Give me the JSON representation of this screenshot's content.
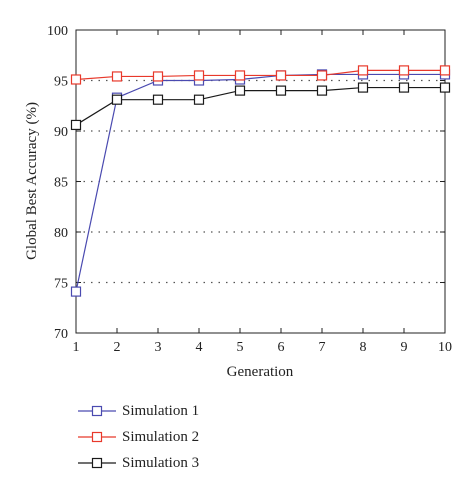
{
  "chart_data": {
    "type": "line",
    "xlabel": "Generation",
    "ylabel": "Global Best Accuracy (%)",
    "x": [
      1,
      2,
      3,
      4,
      5,
      6,
      7,
      8,
      9,
      10
    ],
    "xlim": [
      1,
      10
    ],
    "ylim": [
      70,
      100
    ],
    "xticks": [
      "1",
      "2",
      "3",
      "4",
      "5",
      "6",
      "7",
      "8",
      "9",
      "10"
    ],
    "yticks": [
      "70",
      "75",
      "80",
      "85",
      "90",
      "95",
      "100"
    ],
    "grid": "horizontal dotted",
    "legend_position": "bottom-left, below plot",
    "series": [
      {
        "name": "Simulation 1",
        "color": "#4a4ab0",
        "marker": "square",
        "values": [
          74.1,
          93.3,
          95.0,
          95.0,
          95.1,
          95.5,
          95.6,
          95.6,
          95.6,
          95.6
        ]
      },
      {
        "name": "Simulation 2",
        "color": "#e8392b",
        "marker": "square",
        "values": [
          95.1,
          95.4,
          95.4,
          95.5,
          95.5,
          95.5,
          95.5,
          96.0,
          96.0,
          96.0
        ]
      },
      {
        "name": "Simulation 3",
        "color": "#1a1a1a",
        "marker": "square",
        "values": [
          90.6,
          93.1,
          93.1,
          93.1,
          94.0,
          94.0,
          94.0,
          94.3,
          94.3,
          94.3
        ]
      }
    ]
  }
}
